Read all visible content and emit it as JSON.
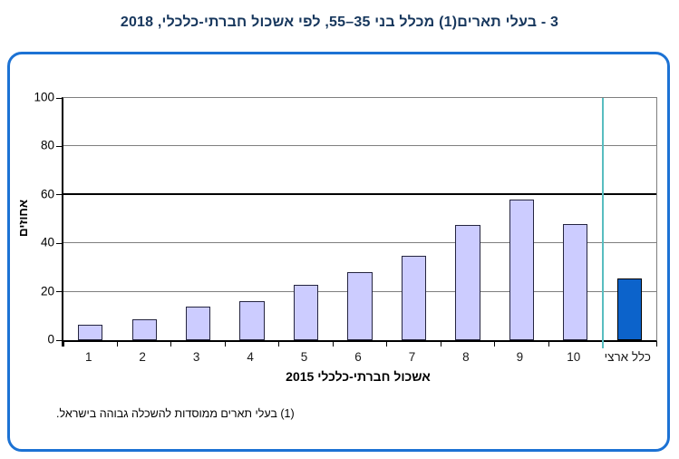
{
  "title": "3 - בעלי תארים(1) מכלל בני 35–55, לפי אשכול חברתי-כלכלי, 2018",
  "footnote": "(1) בעלי תארים ממוסדות להשכלה גבוהה בישראל.",
  "colors": {
    "title_text": "#17375d",
    "frame_border": "#1c72d4",
    "cluster_bar_fill": "#ccccff",
    "national_bar_fill": "#0c63cb",
    "bar_border": "#252540",
    "gridline": "#7f7f7f",
    "reference_line": "#000000",
    "separator_line": "#58bdc0"
  },
  "chart_data": {
    "type": "bar",
    "title": "3 - בעלי תארים(1) מכלל בני 35–55, לפי אשכול חברתי-כלכלי, 2018",
    "categories": [
      "1",
      "2",
      "3",
      "4",
      "5",
      "6",
      "7",
      "8",
      "9",
      "10",
      "כלל ארצי"
    ],
    "values": [
      6.5,
      8.5,
      14,
      16,
      23,
      28,
      35,
      47.5,
      58,
      48,
      25.5
    ],
    "xlabel": "אשכול חברתי-כלכלי 2015",
    "ylabel": "אחוזים",
    "ylim": [
      0,
      100
    ],
    "yticks": [
      0,
      20,
      40,
      60,
      80,
      100
    ],
    "grid": "horizontal",
    "legend": "none",
    "reference_line_y": 60,
    "separator_after_category_index": 9,
    "national_category": "כלל ארצי"
  }
}
